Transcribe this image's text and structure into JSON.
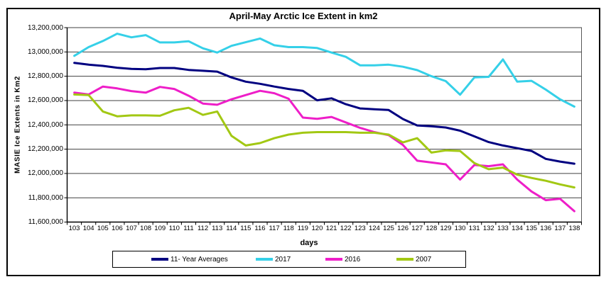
{
  "chart_data": {
    "type": "line",
    "title": "April-May Arctic Ice Extent in km2",
    "xlabel": "days",
    "ylabel": "MASIE Ice Extents in Km2",
    "ylim": [
      11600000,
      13200000
    ],
    "y_tick_step": 200000,
    "grid": true,
    "legend_position": "bottom",
    "y_tick_labels": [
      "13,200,000",
      "13,000,000",
      "12,800,000",
      "12,600,000",
      "12,400,000",
      "12,200,000",
      "12,000,000",
      "11,800,000",
      "11,600,000"
    ],
    "categories": [
      "103",
      "104",
      "105",
      "106",
      "107",
      "108",
      "109",
      "110",
      "111",
      "112",
      "113",
      "114",
      "115",
      "116",
      "117",
      "118",
      "119",
      "120",
      "121",
      "122",
      "123",
      "124",
      "125",
      "126",
      "127",
      "128",
      "129",
      "130",
      "131",
      "132",
      "133",
      "134",
      "135",
      "136",
      "137",
      "138"
    ],
    "series": [
      {
        "name": "11- Year Averages",
        "color": "#000080",
        "values": [
          12910000,
          12895000,
          12885000,
          12870000,
          12860000,
          12858000,
          12868000,
          12868000,
          12852000,
          12845000,
          12838000,
          12790000,
          12755000,
          12738000,
          12715000,
          12695000,
          12680000,
          12602000,
          12618000,
          12570000,
          12535000,
          12528000,
          12522000,
          12448000,
          12395000,
          12388000,
          12378000,
          12352000,
          12305000,
          12258000,
          12230000,
          12208000,
          12185000,
          12120000,
          12098000,
          12080000
        ]
      },
      {
        "name": "2017",
        "color": "#35d0e8",
        "values": [
          12968000,
          13040000,
          13090000,
          13150000,
          13120000,
          13138000,
          13078000,
          13078000,
          13088000,
          13030000,
          12995000,
          13050000,
          13080000,
          13110000,
          13055000,
          13040000,
          13040000,
          13032000,
          12995000,
          12960000,
          12890000,
          12890000,
          12895000,
          12878000,
          12850000,
          12800000,
          12760000,
          12648000,
          12790000,
          12795000,
          12938000,
          12755000,
          12762000,
          12690000,
          12610000,
          12550000
        ]
      },
      {
        "name": "2016",
        "color": "#ee1ec8",
        "values": [
          12665000,
          12650000,
          12715000,
          12700000,
          12678000,
          12665000,
          12712000,
          12695000,
          12640000,
          12575000,
          12565000,
          12610000,
          12645000,
          12680000,
          12660000,
          12615000,
          12460000,
          12450000,
          12465000,
          12420000,
          12375000,
          12340000,
          12315000,
          12235000,
          12105000,
          12090000,
          12075000,
          11950000,
          12070000,
          12060000,
          12075000,
          11950000,
          11852000,
          11780000,
          11792000,
          11690000
        ]
      },
      {
        "name": "2007",
        "color": "#a2c813",
        "values": [
          12650000,
          12645000,
          12510000,
          12470000,
          12478000,
          12478000,
          12475000,
          12520000,
          12540000,
          12482000,
          12510000,
          12310000,
          12230000,
          12250000,
          12290000,
          12320000,
          12335000,
          12340000,
          12340000,
          12340000,
          12335000,
          12335000,
          12320000,
          12255000,
          12290000,
          12172000,
          12190000,
          12185000,
          12085000,
          12035000,
          12048000,
          11990000,
          11963000,
          11940000,
          11910000,
          11885000
        ]
      }
    ]
  }
}
